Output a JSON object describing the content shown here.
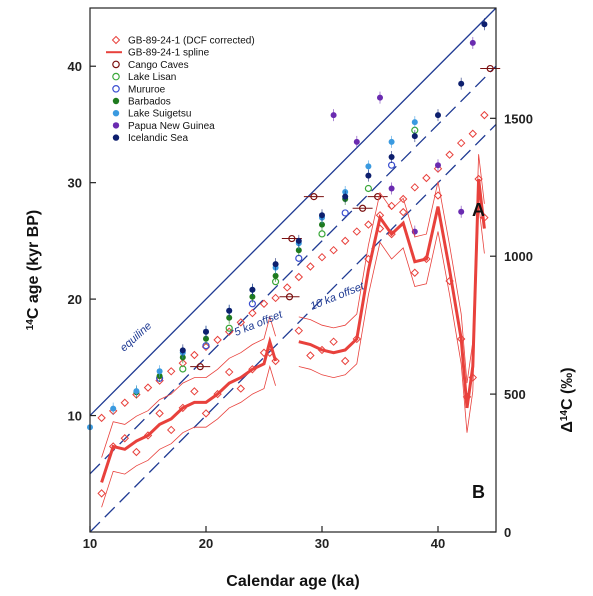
{
  "chart_data": {
    "type": "scatter",
    "xlabel": "Calendar age (ka)",
    "ylabel_left": "14C age (kyr BP)",
    "ylabel_right": "Δ14C (‰)",
    "xlim": [
      10,
      45
    ],
    "ylim_left": [
      0,
      45
    ],
    "ylim_right": [
      0,
      1900
    ],
    "x_ticks": [
      "10",
      "20",
      "30",
      "40"
    ],
    "y_left_ticks": [
      "10",
      "20",
      "30",
      "40"
    ],
    "y_right_ticks": [
      "0",
      "500",
      "1000",
      "1500"
    ],
    "panel_labels": {
      "a": "A",
      "b": "B"
    },
    "annotations": {
      "equiline": "equiline",
      "offset5": "5 ka offset",
      "offset10": "10 ka offset"
    },
    "legend_placement": "top-left",
    "legend": [
      {
        "label": "GB-89-24-1 (DCF corrected)",
        "marker": "diamond-open",
        "color": "#e8413c"
      },
      {
        "label": "GB-89-24-1 spline",
        "marker": "line",
        "color": "#e8413c"
      },
      {
        "label": "Cango Caves",
        "marker": "circle-open",
        "color": "#7a1010"
      },
      {
        "label": "Lake Lisan",
        "marker": "circle-open",
        "color": "#3aa83a"
      },
      {
        "label": "Mururoe",
        "marker": "circle-open",
        "color": "#3b4fd0"
      },
      {
        "label": "Barbados",
        "marker": "circle",
        "color": "#1e7a1e"
      },
      {
        "label": "Lake Suigetsu",
        "marker": "circle",
        "color": "#3a9ae0"
      },
      {
        "label": "Papua New Guinea",
        "marker": "circle",
        "color": "#6a2bb0"
      },
      {
        "label": "Icelandic Sea",
        "marker": "circle",
        "color": "#0d1f6e"
      }
    ],
    "reference_lines": [
      {
        "name": "equiline",
        "offset_ka": 0,
        "style": "solid"
      },
      {
        "name": "5 ka offset",
        "offset_ka": 5,
        "style": "dashed"
      },
      {
        "name": "10 ka offset",
        "offset_ka": 10,
        "style": "dashed"
      }
    ],
    "series_A": [
      {
        "name": "GB-89-24-1 (DCF corrected)",
        "x": [
          11,
          12,
          13,
          14,
          15,
          16,
          17,
          18,
          19,
          20,
          21,
          22,
          23,
          24,
          25,
          26,
          27,
          28,
          29,
          30,
          31,
          32,
          33,
          34,
          35,
          36,
          37,
          38,
          39,
          40,
          41,
          42,
          43,
          44
        ],
        "y": [
          9.8,
          10.4,
          11.1,
          11.8,
          12.4,
          13.0,
          13.8,
          14.5,
          15.2,
          15.9,
          16.5,
          17.2,
          18.0,
          18.8,
          19.6,
          20.1,
          21.0,
          21.9,
          22.8,
          23.6,
          24.2,
          25.0,
          25.8,
          26.4,
          27.2,
          28.0,
          28.6,
          29.6,
          30.4,
          31.2,
          32.4,
          33.4,
          34.2,
          35.8
        ]
      },
      {
        "name": "Cango Caves",
        "x": [
          19.5,
          27.2,
          27.4,
          29.3,
          33.5,
          34.8,
          44.5
        ],
        "y": [
          14.2,
          20.2,
          25.2,
          28.8,
          27.8,
          28.8,
          39.8
        ]
      },
      {
        "name": "Lake Lisan",
        "x": [
          18,
          22,
          26,
          30,
          34,
          38
        ],
        "y": [
          14.0,
          17.5,
          21.5,
          25.6,
          29.5,
          34.5
        ]
      },
      {
        "name": "Mururoe",
        "x": [
          16,
          20,
          24,
          28,
          32,
          36
        ],
        "y": [
          13.2,
          16.0,
          19.6,
          23.5,
          27.4,
          31.5
        ]
      },
      {
        "name": "Barbados",
        "x": [
          14,
          16,
          18,
          20,
          22,
          24,
          26,
          28,
          30,
          32
        ],
        "y": [
          12.0,
          13.4,
          15.0,
          16.6,
          18.4,
          20.2,
          22.0,
          24.2,
          26.4,
          28.6
        ]
      },
      {
        "name": "Lake Suigetsu",
        "x": [
          10,
          12,
          14,
          16,
          18,
          20,
          22,
          24,
          26,
          28,
          30,
          32,
          34,
          36,
          38
        ],
        "y": [
          9.0,
          10.6,
          12.1,
          13.8,
          15.4,
          17.2,
          19.0,
          20.8,
          22.7,
          24.8,
          27.0,
          29.2,
          31.4,
          33.5,
          35.2
        ]
      },
      {
        "name": "Papua New Guinea",
        "x": [
          31,
          33,
          35,
          36,
          38,
          40,
          42,
          43
        ],
        "y": [
          35.8,
          33.5,
          37.3,
          29.5,
          25.8,
          31.5,
          27.5,
          42.0
        ]
      },
      {
        "name": "Icelandic Sea",
        "x": [
          18,
          20,
          22,
          24,
          26,
          28,
          30,
          32,
          34,
          36,
          38,
          40,
          42,
          44
        ],
        "y": [
          15.6,
          17.2,
          19.0,
          20.8,
          23.0,
          25.0,
          27.2,
          28.8,
          30.6,
          32.2,
          34.0,
          35.8,
          38.5,
          43.6
        ]
      }
    ],
    "series_B": {
      "name": "GB-89-24-1 spline",
      "x": [
        11,
        12,
        13,
        14,
        15,
        16,
        17,
        18,
        19,
        20,
        21,
        22,
        23,
        24,
        25,
        25.5,
        26,
        28,
        29,
        30,
        31,
        32,
        33,
        34,
        35,
        36,
        37,
        38,
        39,
        40,
        41,
        42,
        42.5,
        43,
        43.5,
        44
      ],
      "y": [
        180,
        310,
        300,
        330,
        350,
        390,
        410,
        450,
        470,
        470,
        500,
        540,
        560,
        590,
        610,
        690,
        620,
        690,
        680,
        660,
        650,
        660,
        700,
        950,
        1140,
        1080,
        1120,
        980,
        990,
        1180,
        950,
        700,
        450,
        600,
        1280,
        1100
      ]
    }
  }
}
